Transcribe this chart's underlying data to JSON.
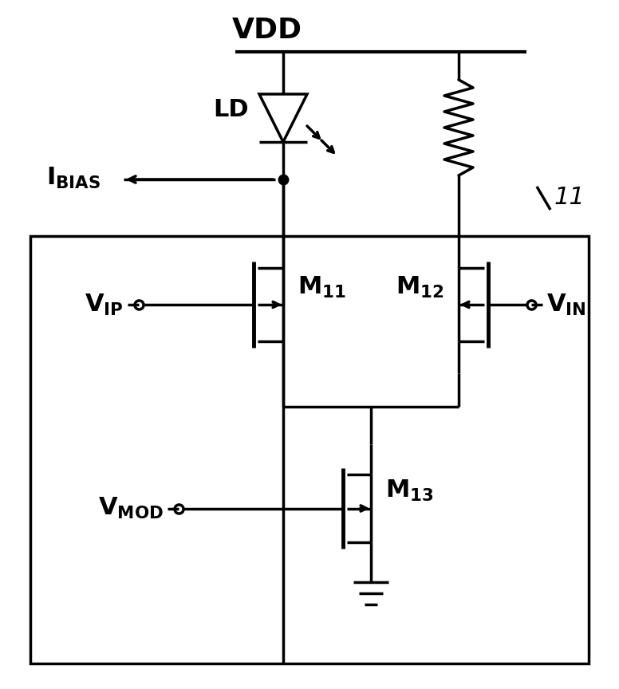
{
  "fig_width": 7.76,
  "fig_height": 8.64,
  "bg_color": "#ffffff",
  "line_color": "#000000",
  "lw": 2.5,
  "lw_thick": 3.5
}
